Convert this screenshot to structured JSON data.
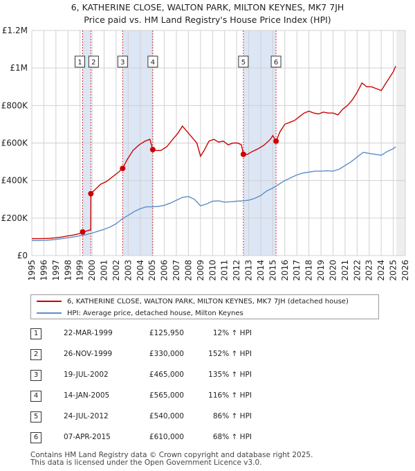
{
  "title": {
    "line1": "6, KATHERINE CLOSE, WALTON PARK, MILTON KEYNES, MK7 7JH",
    "line2": "Price paid vs. HM Land Registry's House Price Index (HPI)"
  },
  "colors": {
    "property": "#cc0000",
    "hpi": "#5b8dc9",
    "shade": "#dde6f5",
    "grid": "#d0d0d0"
  },
  "chart_data": {
    "type": "line",
    "title": "Price paid vs. HM Land Registry's House Price Index (HPI)",
    "xlabel": "",
    "ylabel": "",
    "xlim": [
      1995,
      2026
    ],
    "ylim": [
      0,
      1200000
    ],
    "x_ticks": [
      "1995",
      "1996",
      "1997",
      "1998",
      "1999",
      "2000",
      "2001",
      "2002",
      "2003",
      "2004",
      "2005",
      "2006",
      "2007",
      "2008",
      "2009",
      "2010",
      "2011",
      "2012",
      "2013",
      "2014",
      "2015",
      "2016",
      "2017",
      "2018",
      "2019",
      "2020",
      "2021",
      "2022",
      "2023",
      "2024",
      "2025",
      "2026"
    ],
    "y_ticks": [
      {
        "value": 0,
        "label": "£0"
      },
      {
        "value": 200000,
        "label": "£200K"
      },
      {
        "value": 400000,
        "label": "£400K"
      },
      {
        "value": 600000,
        "label": "£600K"
      },
      {
        "value": 800000,
        "label": "£800K"
      },
      {
        "value": 1000000,
        "label": "£1M"
      },
      {
        "value": 1200000,
        "label": "£1.2M"
      }
    ],
    "grid": true,
    "shaded_spans": [
      [
        1999.22,
        1999.9
      ],
      [
        2002.54,
        2005.04
      ],
      [
        2012.56,
        2015.27
      ]
    ],
    "series": [
      {
        "name": "6, KATHERINE CLOSE, WALTON PARK, MILTON KEYNES, MK7 7JH (detached house)",
        "x": [
          1995.0,
          1995.5,
          1996.0,
          1996.5,
          1997.0,
          1997.5,
          1998.0,
          1998.5,
          1999.0,
          1999.22,
          1999.6,
          1999.89,
          1999.9,
          2000.3,
          2000.7,
          2001.2,
          2001.7,
          2002.2,
          2002.54,
          2002.9,
          2003.4,
          2003.9,
          2004.4,
          2004.8,
          2005.04,
          2005.3,
          2005.7,
          2006.2,
          2006.7,
          2007.1,
          2007.5,
          2007.9,
          2008.3,
          2008.7,
          2009.0,
          2009.3,
          2009.7,
          2010.1,
          2010.5,
          2010.9,
          2011.3,
          2011.7,
          2012.1,
          2012.4,
          2012.56,
          2012.9,
          2013.3,
          2013.8,
          2014.3,
          2014.8,
          2015.0,
          2015.27,
          2015.6,
          2016.0,
          2016.4,
          2016.8,
          2017.2,
          2017.6,
          2018.0,
          2018.4,
          2018.8,
          2019.2,
          2019.6,
          2020.0,
          2020.4,
          2020.8,
          2021.2,
          2021.6,
          2022.0,
          2022.4,
          2022.8,
          2023.2,
          2023.6,
          2024.0,
          2024.4,
          2024.8,
          2025.0,
          2025.2
        ],
        "values": [
          90000,
          90000,
          91000,
          92000,
          95000,
          99000,
          105000,
          110000,
          118000,
          125950,
          132000,
          138000,
          330000,
          355000,
          380000,
          395000,
          420000,
          445000,
          465000,
          510000,
          560000,
          590000,
          610000,
          620000,
          565000,
          560000,
          560000,
          580000,
          620000,
          650000,
          690000,
          660000,
          630000,
          600000,
          530000,
          560000,
          610000,
          620000,
          605000,
          610000,
          590000,
          600000,
          600000,
          590000,
          540000,
          540000,
          555000,
          570000,
          590000,
          620000,
          640000,
          610000,
          660000,
          700000,
          710000,
          720000,
          740000,
          760000,
          770000,
          760000,
          755000,
          765000,
          760000,
          760000,
          750000,
          780000,
          800000,
          830000,
          870000,
          920000,
          900000,
          900000,
          890000,
          880000,
          920000,
          960000,
          980000,
          1010000
        ]
      },
      {
        "name": "HPI: Average price, detached house, Milton Keynes",
        "x": [
          1995.0,
          1995.5,
          1996.0,
          1996.5,
          1997.0,
          1997.5,
          1998.0,
          1998.5,
          1999.0,
          1999.5,
          2000.0,
          2000.5,
          2001.0,
          2001.5,
          2002.0,
          2002.5,
          2003.0,
          2003.5,
          2004.0,
          2004.5,
          2005.0,
          2005.5,
          2006.0,
          2006.5,
          2007.0,
          2007.5,
          2008.0,
          2008.5,
          2009.0,
          2009.5,
          2010.0,
          2010.5,
          2011.0,
          2011.5,
          2012.0,
          2012.5,
          2013.0,
          2013.5,
          2014.0,
          2014.5,
          2015.0,
          2015.5,
          2016.0,
          2016.5,
          2017.0,
          2017.5,
          2018.0,
          2018.5,
          2019.0,
          2019.5,
          2020.0,
          2020.5,
          2021.0,
          2021.5,
          2022.0,
          2022.5,
          2023.0,
          2023.5,
          2024.0,
          2024.5,
          2025.0,
          2025.2
        ],
        "values": [
          80000,
          80000,
          81000,
          83000,
          86000,
          90000,
          95000,
          100000,
          106000,
          112000,
          120000,
          130000,
          140000,
          152000,
          170000,
          195000,
          215000,
          235000,
          250000,
          260000,
          260000,
          262000,
          268000,
          280000,
          295000,
          310000,
          315000,
          300000,
          265000,
          275000,
          290000,
          292000,
          285000,
          287000,
          290000,
          292000,
          295000,
          305000,
          320000,
          345000,
          360000,
          380000,
          400000,
          415000,
          430000,
          440000,
          445000,
          450000,
          450000,
          452000,
          450000,
          460000,
          480000,
          500000,
          525000,
          550000,
          545000,
          540000,
          535000,
          555000,
          570000,
          580000
        ]
      }
    ],
    "sales": [
      {
        "n": "1",
        "date": "22-MAR-1999",
        "x": 1999.22,
        "price": 125950,
        "price_label": "£125,950",
        "hpi": "12% ↑ HPI"
      },
      {
        "n": "2",
        "date": "26-NOV-1999",
        "x": 1999.9,
        "price": 330000,
        "price_label": "£330,000",
        "hpi": "152% ↑ HPI"
      },
      {
        "n": "3",
        "date": "19-JUL-2002",
        "x": 2002.54,
        "price": 465000,
        "price_label": "£465,000",
        "hpi": "135% ↑ HPI"
      },
      {
        "n": "4",
        "date": "14-JAN-2005",
        "x": 2005.04,
        "price": 565000,
        "price_label": "£565,000",
        "hpi": "116% ↑ HPI"
      },
      {
        "n": "5",
        "date": "24-JUL-2012",
        "x": 2012.56,
        "price": 540000,
        "price_label": "£540,000",
        "hpi": "86% ↑ HPI"
      },
      {
        "n": "6",
        "date": "07-APR-2015",
        "x": 2015.27,
        "price": 610000,
        "price_label": "£610,000",
        "hpi": "68% ↑ HPI"
      }
    ]
  },
  "legend": {
    "property_label": "6, KATHERINE CLOSE, WALTON PARK, MILTON KEYNES, MK7 7JH (detached house)",
    "hpi_label": "HPI: Average price, detached house, Milton Keynes"
  },
  "footer": {
    "line1": "Contains HM Land Registry data © Crown copyright and database right 2025.",
    "line2": "This data is licensed under the Open Government Licence v3.0."
  }
}
